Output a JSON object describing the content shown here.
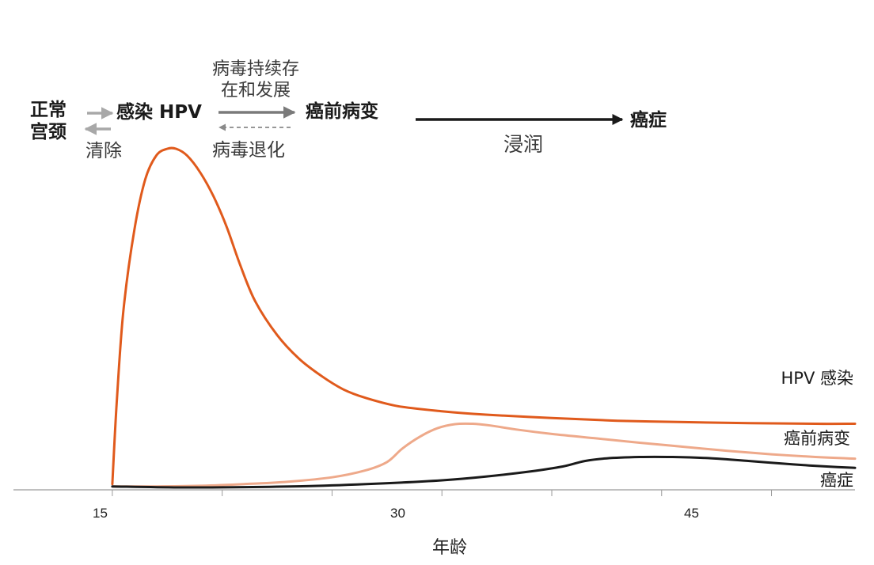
{
  "flow": {
    "normal": "正常\n宫颈",
    "infection": "感染 HPV",
    "clear": "清除",
    "persist": "病毒持续存\n在和发展",
    "regress": "病毒退化",
    "precancer": "癌前病变",
    "invasion": "浸润",
    "cancer": "癌症"
  },
  "colors": {
    "hpv": "#e05a1c",
    "precancer": "#eea98a",
    "cancer": "#1a1a1a",
    "arrow_light": "#a8a8a8",
    "arrow_mid": "#7a7a7a",
    "arrow_dark": "#1a1a1a",
    "axis": "#9a9a9a"
  },
  "chart_data": {
    "type": "line",
    "xlabel": "年龄",
    "ylabel": "",
    "xlim": [
      10.5,
      48.8
    ],
    "xticks": [
      15,
      30,
      45
    ],
    "grid": false,
    "legend": "inline labels at right end of each line",
    "series": [
      {
        "name": "HPV 感染",
        "x": [
          15,
          15.2,
          15.5,
          16,
          16.5,
          17,
          17.5,
          17.9,
          18.4,
          19,
          19.6,
          20.2,
          20.8,
          21.5,
          22.5,
          23.5,
          24.5,
          25.5,
          26.5,
          28,
          30,
          32,
          35,
          38,
          41,
          44,
          47,
          48.8
        ],
        "y": [
          0.01,
          0.25,
          0.52,
          0.76,
          0.91,
          0.98,
          1.0,
          1.0,
          0.98,
          0.93,
          0.86,
          0.77,
          0.66,
          0.55,
          0.45,
          0.38,
          0.33,
          0.29,
          0.265,
          0.24,
          0.225,
          0.215,
          0.205,
          0.197,
          0.193,
          0.19,
          0.188,
          0.188
        ]
      },
      {
        "name": "癌前病变",
        "x": [
          15,
          17,
          19,
          21,
          23,
          25,
          26.5,
          27.5,
          28.2,
          29,
          29.8,
          30.6,
          31.4,
          32.2,
          33.5,
          35,
          37,
          39,
          41,
          43,
          45,
          47,
          48.8
        ],
        "y": [
          0.003,
          0.003,
          0.005,
          0.01,
          0.017,
          0.03,
          0.05,
          0.075,
          0.115,
          0.15,
          0.175,
          0.187,
          0.188,
          0.183,
          0.17,
          0.158,
          0.145,
          0.132,
          0.12,
          0.108,
          0.098,
          0.09,
          0.085
        ]
      },
      {
        "name": "癌症",
        "x": [
          15,
          18,
          21,
          24,
          27,
          30,
          32,
          34,
          35.5,
          36.5,
          37.5,
          39,
          40.5,
          42,
          44,
          46,
          48,
          48.8
        ],
        "y": [
          0.003,
          0.0,
          0.001,
          0.004,
          0.011,
          0.021,
          0.032,
          0.047,
          0.062,
          0.078,
          0.086,
          0.09,
          0.09,
          0.087,
          0.078,
          0.068,
          0.06,
          0.058
        ]
      }
    ]
  }
}
